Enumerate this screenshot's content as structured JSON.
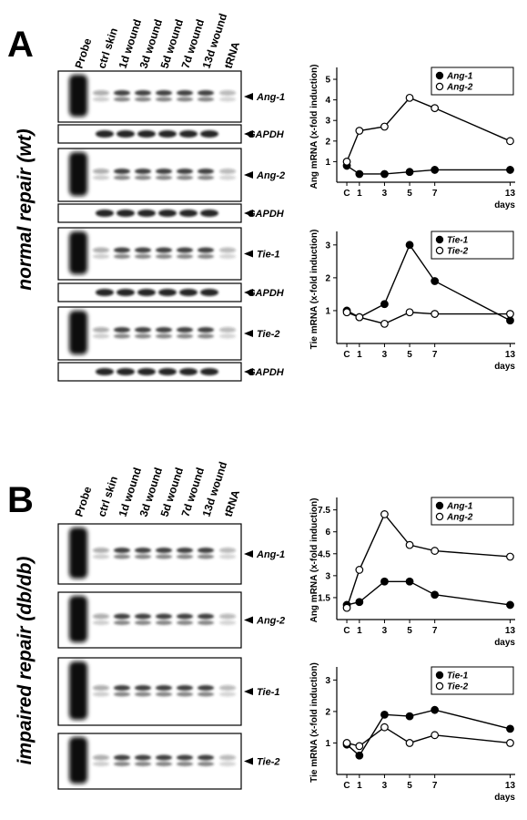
{
  "panel_a": {
    "letter": "A",
    "condition": "normal repair (wt)",
    "lanes": [
      "Probe",
      "ctrl skin",
      "1d wound",
      "3d wound",
      "5d wound",
      "7d wound",
      "13d wound",
      "tRNA"
    ],
    "blots": [
      "Ang-1",
      "GAPDH",
      "Ang-2",
      "GAPDH",
      "Tie-1",
      "GAPDH",
      "Tie-2",
      "GAPDH"
    ]
  },
  "panel_b": {
    "letter": "B",
    "condition": "impaired repair (db/db)",
    "lanes": [
      "Probe",
      "ctrl skin",
      "1d wound",
      "3d wound",
      "5d wound",
      "7d wound",
      "13d wound",
      "tRNA"
    ],
    "blots": [
      "Ang-1",
      "Ang-2",
      "Tie-1",
      "Tie-2"
    ]
  },
  "chart_data": [
    {
      "type": "line",
      "y_label": "Ang mRNA (x-fold induction)",
      "x_label": "days",
      "x": [
        0,
        1,
        3,
        5,
        7,
        13
      ],
      "xticks": [
        {
          "value": 0,
          "label": "C"
        },
        1,
        3,
        5,
        7,
        13
      ],
      "xlim": [
        -0.8,
        13.4
      ],
      "ylim": [
        0,
        5.4
      ],
      "yticks": [
        1,
        2,
        3,
        4,
        5
      ],
      "series": [
        {
          "name": "Ang-1",
          "color": "#000000",
          "values": [
            0.8,
            0.4,
            0.4,
            0.5,
            0.6,
            0.6
          ]
        },
        {
          "name": "Ang-2",
          "color": "#ffffff",
          "values": [
            1.0,
            2.5,
            2.7,
            4.1,
            3.6,
            2.0
          ]
        }
      ]
    },
    {
      "type": "line",
      "y_label": "Tie mRNA (x-fold induction)",
      "x_label": "days",
      "x": [
        0,
        1,
        3,
        5,
        7,
        13
      ],
      "xticks": [
        {
          "value": 0,
          "label": "C"
        },
        1,
        3,
        5,
        7,
        13
      ],
      "xlim": [
        -0.8,
        13.4
      ],
      "ylim": [
        0,
        3.3
      ],
      "yticks": [
        1,
        2,
        3
      ],
      "series": [
        {
          "name": "Tie-1",
          "color": "#000000",
          "values": [
            1.0,
            0.8,
            1.2,
            3.0,
            1.9,
            0.7
          ]
        },
        {
          "name": "Tie-2",
          "color": "#ffffff",
          "values": [
            0.95,
            0.8,
            0.6,
            0.95,
            0.9,
            0.9
          ]
        }
      ]
    },
    {
      "type": "line",
      "y_label": "Ang mRNA (x-fold induction)",
      "x_label": "days",
      "x": [
        0,
        1,
        3,
        5,
        7,
        13
      ],
      "xticks": [
        {
          "value": 0,
          "label": "C"
        },
        1,
        3,
        5,
        7,
        13
      ],
      "xlim": [
        -0.8,
        13.4
      ],
      "ylim": [
        0,
        8.1
      ],
      "yticks": [
        1.5,
        3,
        4.5,
        6,
        7.5
      ],
      "series": [
        {
          "name": "Ang-1",
          "color": "#000000",
          "values": [
            1.0,
            1.2,
            2.6,
            2.6,
            1.7,
            1.0
          ]
        },
        {
          "name": "Ang-2",
          "color": "#ffffff",
          "values": [
            0.8,
            3.4,
            7.2,
            5.1,
            4.7,
            4.3
          ]
        }
      ]
    },
    {
      "type": "line",
      "y_label": "Tie mRNA (x-fold induction)",
      "x_label": "days",
      "x": [
        0,
        1,
        3,
        5,
        7,
        13
      ],
      "xticks": [
        {
          "value": 0,
          "label": "C"
        },
        1,
        3,
        5,
        7,
        13
      ],
      "xlim": [
        -0.8,
        13.4
      ],
      "ylim": [
        0,
        3.3
      ],
      "yticks": [
        1,
        2,
        3
      ],
      "series": [
        {
          "name": "Tie-1",
          "color": "#000000",
          "values": [
            0.95,
            0.6,
            1.9,
            1.85,
            2.05,
            1.45
          ]
        },
        {
          "name": "Tie-2",
          "color": "#ffffff",
          "values": [
            1.0,
            0.9,
            1.5,
            1.0,
            1.25,
            1.0
          ]
        }
      ]
    }
  ]
}
